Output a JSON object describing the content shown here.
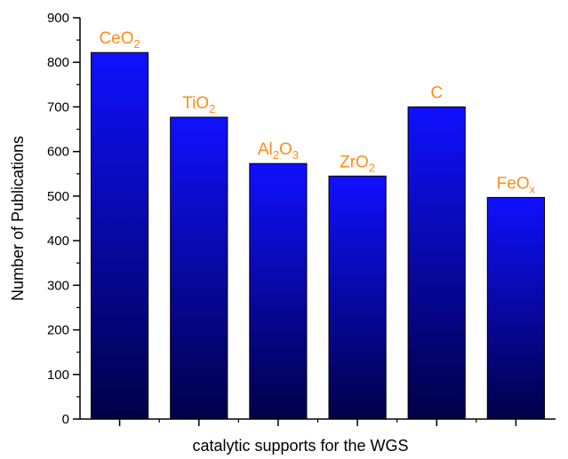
{
  "chart_data": {
    "type": "bar",
    "title": "",
    "xlabel": "catalytic supports for the WGS",
    "ylabel": "Number of Publications",
    "ylim": [
      0,
      900
    ],
    "yticks": [
      0,
      100,
      200,
      300,
      400,
      500,
      600,
      700,
      800,
      900
    ],
    "grid": false,
    "legend": "none",
    "categories": [
      {
        "label": "CeO2",
        "base": "CeO",
        "sub": "2",
        "parts": [
          {
            "t": "CeO"
          },
          {
            "t": "2",
            "sub": true
          }
        ]
      },
      {
        "label": "TiO2",
        "base": "TiO",
        "sub": "2",
        "parts": [
          {
            "t": "TiO"
          },
          {
            "t": "2",
            "sub": true
          }
        ]
      },
      {
        "label": "Al2O3",
        "parts": [
          {
            "t": "Al"
          },
          {
            "t": "2",
            "sub": true
          },
          {
            "t": "O"
          },
          {
            "t": "3",
            "sub": true
          }
        ]
      },
      {
        "label": "ZrO2",
        "parts": [
          {
            "t": "ZrO"
          },
          {
            "t": "2",
            "sub": true
          }
        ]
      },
      {
        "label": "C",
        "parts": [
          {
            "t": "C"
          }
        ]
      },
      {
        "label": "FeOx",
        "parts": [
          {
            "t": "FeO"
          },
          {
            "t": "x",
            "sub": true
          }
        ]
      }
    ],
    "values": [
      822,
      677,
      573,
      545,
      700,
      497
    ],
    "colors": {
      "bar_top": "#1010ff",
      "bar_bottom": "#000048",
      "label": "#ff8c1a",
      "axis": "#000000"
    }
  }
}
